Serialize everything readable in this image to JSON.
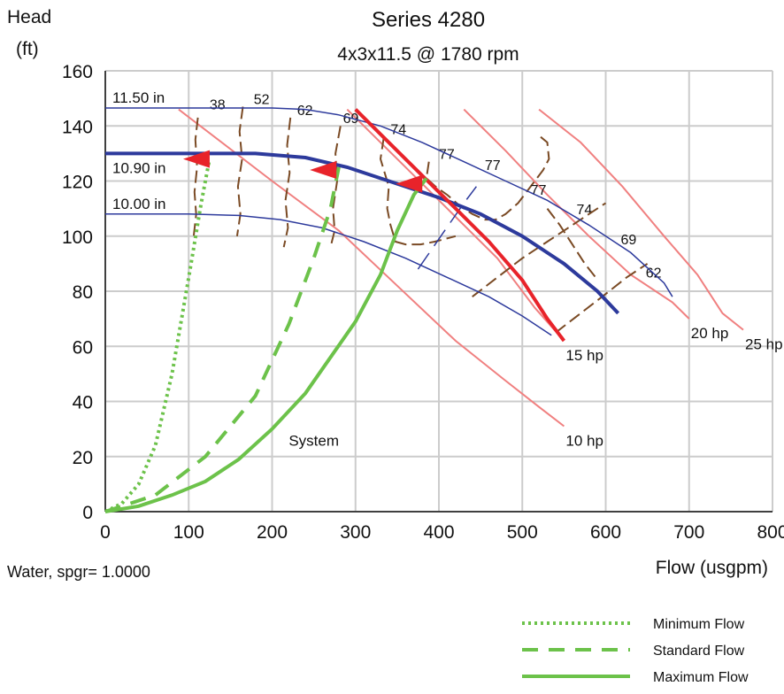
{
  "chart_data": {
    "type": "line",
    "title": "Series 4280",
    "subtitle": "4x3x11.5 @ 1780 rpm",
    "ylabel_line1": "Head",
    "ylabel_line2": "(ft)",
    "xlabel": "Flow (usgpm)",
    "fluid_note": "Water, spgr= 1.0000",
    "xlim": [
      0,
      800
    ],
    "ylim": [
      0,
      160
    ],
    "x_ticks": [
      0,
      100,
      200,
      300,
      400,
      500,
      600,
      700,
      800
    ],
    "y_ticks": [
      0,
      20,
      40,
      60,
      80,
      100,
      120,
      140,
      160
    ],
    "grid": true,
    "colors": {
      "impeller": "#2d3a9c",
      "horsepower": "#f08080",
      "efficiency": "#7a4a24",
      "system": "#6cc24a",
      "flow_marker": "#e8232a"
    },
    "impeller_curves": [
      {
        "label": "11.50 in",
        "points": [
          [
            0,
            146.5
          ],
          [
            100,
            146.5
          ],
          [
            200,
            146.5
          ],
          [
            240,
            146
          ],
          [
            280,
            144
          ],
          [
            330,
            140
          ],
          [
            380,
            134
          ],
          [
            430,
            127
          ],
          [
            480,
            120
          ],
          [
            530,
            113
          ],
          [
            580,
            104
          ],
          [
            630,
            94
          ],
          [
            670,
            83
          ],
          [
            680,
            78
          ]
        ]
      },
      {
        "label": "10.90 in",
        "points": [
          [
            0,
            130
          ],
          [
            150,
            130
          ],
          [
            180,
            130
          ],
          [
            240,
            128.5
          ],
          [
            290,
            125
          ],
          [
            340,
            120
          ],
          [
            400,
            114
          ],
          [
            450,
            108
          ],
          [
            500,
            100
          ],
          [
            550,
            90
          ],
          [
            590,
            80
          ],
          [
            615,
            72
          ]
        ]
      },
      {
        "label": "10.00 in",
        "points": [
          [
            0,
            108
          ],
          [
            100,
            108
          ],
          [
            160,
            107.5
          ],
          [
            210,
            106
          ],
          [
            260,
            103
          ],
          [
            310,
            98
          ],
          [
            360,
            92
          ],
          [
            410,
            85
          ],
          [
            460,
            78
          ],
          [
            500,
            71
          ],
          [
            535,
            64
          ]
        ]
      }
    ],
    "horsepower_curves": [
      {
        "label": "10 hp",
        "points": [
          [
            88,
            146
          ],
          [
            200,
            120
          ],
          [
            280,
            102
          ],
          [
            350,
            82
          ],
          [
            420,
            62
          ],
          [
            478,
            48
          ],
          [
            520,
            38
          ],
          [
            550,
            31
          ]
        ]
      },
      {
        "label": "15 hp",
        "points": [
          [
            290,
            146
          ],
          [
            350,
            128
          ],
          [
            410,
            110
          ],
          [
            470,
            92
          ],
          [
            515,
            74
          ],
          [
            550,
            62
          ]
        ]
      },
      {
        "label": "20 hp",
        "points": [
          [
            430,
            146
          ],
          [
            480,
            131
          ],
          [
            530,
            115
          ],
          [
            580,
            100
          ],
          [
            630,
            86
          ],
          [
            680,
            76
          ],
          [
            700,
            70
          ]
        ]
      },
      {
        "label": "25 hp",
        "points": [
          [
            520,
            146
          ],
          [
            570,
            134
          ],
          [
            620,
            118
          ],
          [
            670,
            100
          ],
          [
            710,
            86
          ],
          [
            740,
            72
          ],
          [
            765,
            66
          ]
        ]
      }
    ],
    "efficiency_contours": [
      {
        "label": "38",
        "label_at": [
          125,
          146
        ],
        "points": [
          [
            111,
            143
          ],
          [
            108,
            135
          ],
          [
            110,
            125
          ],
          [
            107,
            116
          ],
          [
            109,
            108
          ],
          [
            106,
            100
          ]
        ]
      },
      {
        "label": "52",
        "label_at": [
          178,
          148
        ],
        "points": [
          [
            165,
            147
          ],
          [
            161,
            138
          ],
          [
            164,
            128
          ],
          [
            159,
            118
          ],
          [
            162,
            108
          ],
          [
            158,
            100
          ]
        ]
      },
      {
        "label": "62",
        "label_at": [
          230,
          144
        ],
        "points": [
          [
            222,
            143
          ],
          [
            218,
            133
          ],
          [
            221,
            123
          ],
          [
            216,
            113
          ],
          [
            219,
            103
          ],
          [
            214,
            96
          ]
        ]
      },
      {
        "label": "69",
        "label_at": [
          285,
          141
        ],
        "points": [
          [
            282,
            140
          ],
          [
            276,
            130
          ],
          [
            278,
            120
          ],
          [
            273,
            110
          ],
          [
            275,
            102
          ],
          [
            270,
            96
          ]
        ]
      },
      {
        "label": "74",
        "label_at": [
          342,
          137
        ],
        "points": [
          [
            334,
            136
          ],
          [
            330,
            128
          ],
          [
            340,
            118
          ],
          [
            338,
            110
          ],
          [
            342,
            104
          ],
          [
            348,
            98
          ],
          [
            360,
            97
          ],
          [
            378,
            97
          ],
          [
            395,
            98
          ],
          [
            420,
            100
          ]
        ]
      },
      {
        "label": "77",
        "label_at": [
          400,
          128
        ],
        "points": [
          [
            388,
            127
          ],
          [
            385,
            121
          ],
          [
            396,
            118
          ],
          [
            410,
            115
          ],
          [
            425,
            111
          ],
          [
            440,
            108
          ],
          [
            455,
            106
          ],
          [
            468,
            106
          ],
          [
            480,
            108
          ],
          [
            495,
            112
          ],
          [
            505,
            116
          ],
          [
            515,
            120
          ],
          [
            525,
            124
          ],
          [
            532,
            128
          ],
          [
            530,
            134
          ],
          [
            522,
            136
          ]
        ]
      },
      {
        "label": "77",
        "label_at": [
          455,
          124
        ],
        "points": []
      },
      {
        "label": "77",
        "label_at": [
          510,
          115
        ],
        "points": []
      },
      {
        "label": "74",
        "label_at": [
          565,
          108
        ],
        "points": [
          [
            530,
            110
          ],
          [
            545,
            104
          ],
          [
            560,
            97
          ],
          [
            575,
            90
          ],
          [
            588,
            85
          ]
        ]
      },
      {
        "label": "69",
        "label_at": [
          618,
          97
        ],
        "points": [
          [
            440,
            78
          ],
          [
            470,
            85
          ],
          [
            500,
            92
          ],
          [
            530,
            98
          ],
          [
            555,
            103
          ],
          [
            580,
            108
          ],
          [
            600,
            112
          ]
        ]
      },
      {
        "label": "62",
        "label_at": [
          648,
          85
        ],
        "points": [
          [
            540,
            65
          ],
          [
            570,
            72
          ],
          [
            600,
            79
          ],
          [
            625,
            85
          ],
          [
            650,
            90
          ]
        ]
      }
    ],
    "efficiency_best_line": {
      "points": [
        [
          375,
          88
        ],
        [
          400,
          99
        ],
        [
          430,
          112
        ],
        [
          445,
          118
        ]
      ]
    },
    "system_curves": [
      {
        "name": "Minimum Flow",
        "style": "dotted",
        "points": [
          [
            0,
            0
          ],
          [
            20,
            3
          ],
          [
            40,
            10
          ],
          [
            60,
            24
          ],
          [
            80,
            50
          ],
          [
            100,
            85
          ],
          [
            115,
            112
          ],
          [
            125,
            128
          ]
        ]
      },
      {
        "name": "Standard Flow",
        "style": "dashed",
        "points": [
          [
            0,
            0
          ],
          [
            60,
            6
          ],
          [
            120,
            20
          ],
          [
            180,
            42
          ],
          [
            220,
            68
          ],
          [
            250,
            92
          ],
          [
            270,
            110
          ],
          [
            280,
            125
          ]
        ]
      },
      {
        "name": "Maximum Flow",
        "style": "solid",
        "points": [
          [
            0,
            0
          ],
          [
            40,
            2
          ],
          [
            80,
            6
          ],
          [
            120,
            11
          ],
          [
            160,
            19
          ],
          [
            200,
            30
          ],
          [
            240,
            43
          ],
          [
            270,
            56
          ],
          [
            300,
            69
          ],
          [
            330,
            86
          ],
          [
            350,
            102
          ],
          [
            370,
            115
          ],
          [
            385,
            121
          ]
        ]
      }
    ],
    "system_label": "System",
    "system_label_at": [
      220,
      24
    ],
    "operating_markers": [
      {
        "x": 123,
        "y": 128,
        "dir": "left"
      },
      {
        "x": 275,
        "y": 124,
        "dir": "left"
      },
      {
        "x": 378,
        "y": 119,
        "dir": "left"
      }
    ],
    "legend": [
      {
        "label": "Minimum Flow",
        "style": "dotted"
      },
      {
        "label": "Standard Flow",
        "style": "dashed"
      },
      {
        "label": "Maximum Flow",
        "style": "solid"
      }
    ]
  }
}
